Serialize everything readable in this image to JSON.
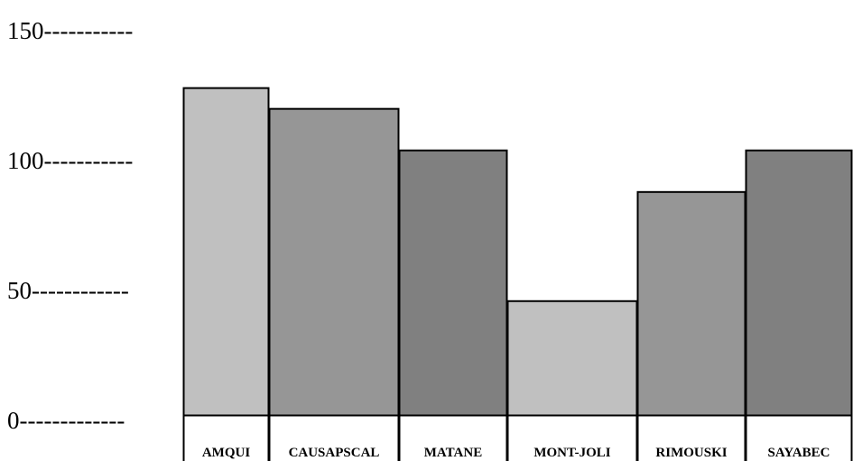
{
  "chart_data": {
    "type": "bar",
    "title": "",
    "xlabel": "",
    "ylabel": "",
    "ylim": [
      0,
      150
    ],
    "grid": false,
    "legend": "none",
    "y_ticks": [
      {
        "value": 0,
        "label": "0-------------"
      },
      {
        "value": 50,
        "label": "50------------"
      },
      {
        "value": 100,
        "label": "100-----------"
      },
      {
        "value": 150,
        "label": "150-----------"
      }
    ],
    "categories": [
      "AMQUI",
      "CAUSAPSCAL",
      "MATANE",
      "MONT-JOLI",
      "RIMOUSKI",
      "SAYABEC"
    ],
    "values": [
      126,
      118,
      102,
      44,
      86,
      102
    ],
    "colors": [
      "#c0c0c0",
      "#969696",
      "#808080",
      "#c0c0c0",
      "#969696",
      "#808080"
    ],
    "stroke_color": "#000000"
  }
}
